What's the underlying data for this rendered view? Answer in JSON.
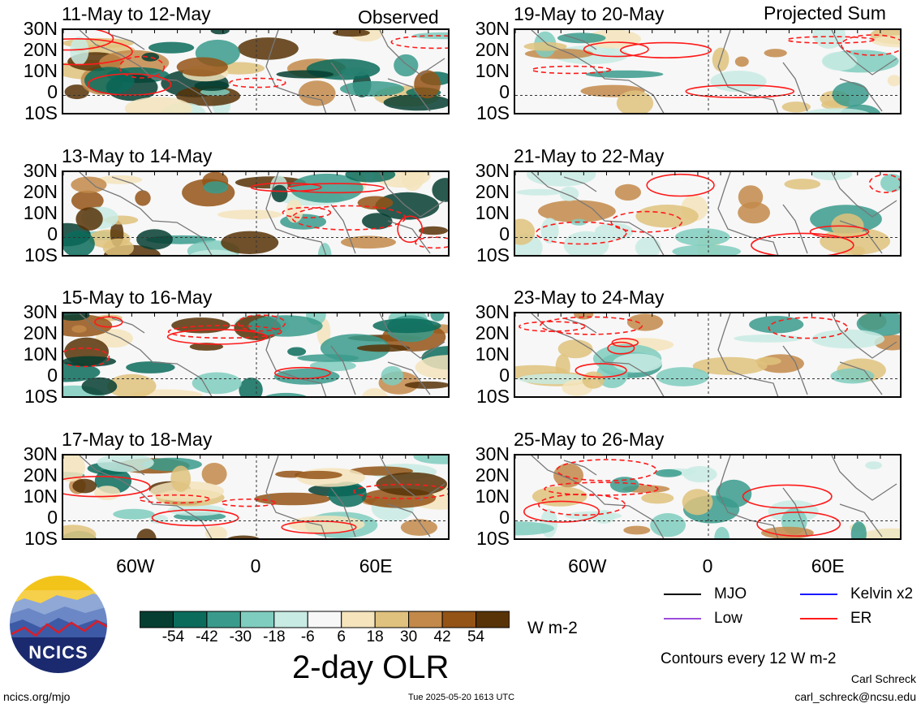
{
  "headers": {
    "left": "Observed",
    "right": "Projected Sum"
  },
  "panels": [
    {
      "col": 0,
      "row": 0,
      "title": "11-May to 12-May",
      "seed": 11
    },
    {
      "col": 0,
      "row": 1,
      "title": "13-May to 14-May",
      "seed": 13
    },
    {
      "col": 0,
      "row": 2,
      "title": "15-May to 16-May",
      "seed": 15
    },
    {
      "col": 0,
      "row": 3,
      "title": "17-May to 18-May",
      "seed": 17
    },
    {
      "col": 1,
      "row": 0,
      "title": "19-May to 20-May",
      "seed": 19
    },
    {
      "col": 1,
      "row": 1,
      "title": "21-May to 22-May",
      "seed": 21
    },
    {
      "col": 1,
      "row": 2,
      "title": "23-May to 24-May",
      "seed": 23
    },
    {
      "col": 1,
      "row": 3,
      "title": "25-May to 26-May",
      "seed": 25
    }
  ],
  "lat_labels": [
    "30N",
    "20N",
    "10N",
    "0",
    "10S"
  ],
  "lon_labels": [
    "60W",
    "0",
    "60E"
  ],
  "colorbar": {
    "labels": [
      "-54",
      "-42",
      "-30",
      "-18",
      "-6",
      "6",
      "18",
      "30",
      "42",
      "54"
    ],
    "colors": [
      "#063e31",
      "#0b6c5c",
      "#3a9b8c",
      "#7fcdbe",
      "#c8ebe3",
      "#f7f7f7",
      "#f5e4bc",
      "#dfc27d",
      "#c3894a",
      "#945416",
      "#573307"
    ],
    "units": "W m-2",
    "title": "2-day OLR"
  },
  "legend": [
    {
      "label": "MJO",
      "color": "#000000"
    },
    {
      "label": "Kelvin x2",
      "color": "#1a1aff"
    },
    {
      "label": "Low",
      "color": "#9b4ddb"
    },
    {
      "label": "ER",
      "color": "#ff1a1a"
    }
  ],
  "contour_note": "Contours every 12 W m-2",
  "logo_text": "NCICS",
  "footer": {
    "left": "ncics.org/mjo",
    "center": "Tue 2025-05-20 1613 UTC",
    "author": "Carl Schreck",
    "email": "carl_schreck@ncsu.edu"
  }
}
